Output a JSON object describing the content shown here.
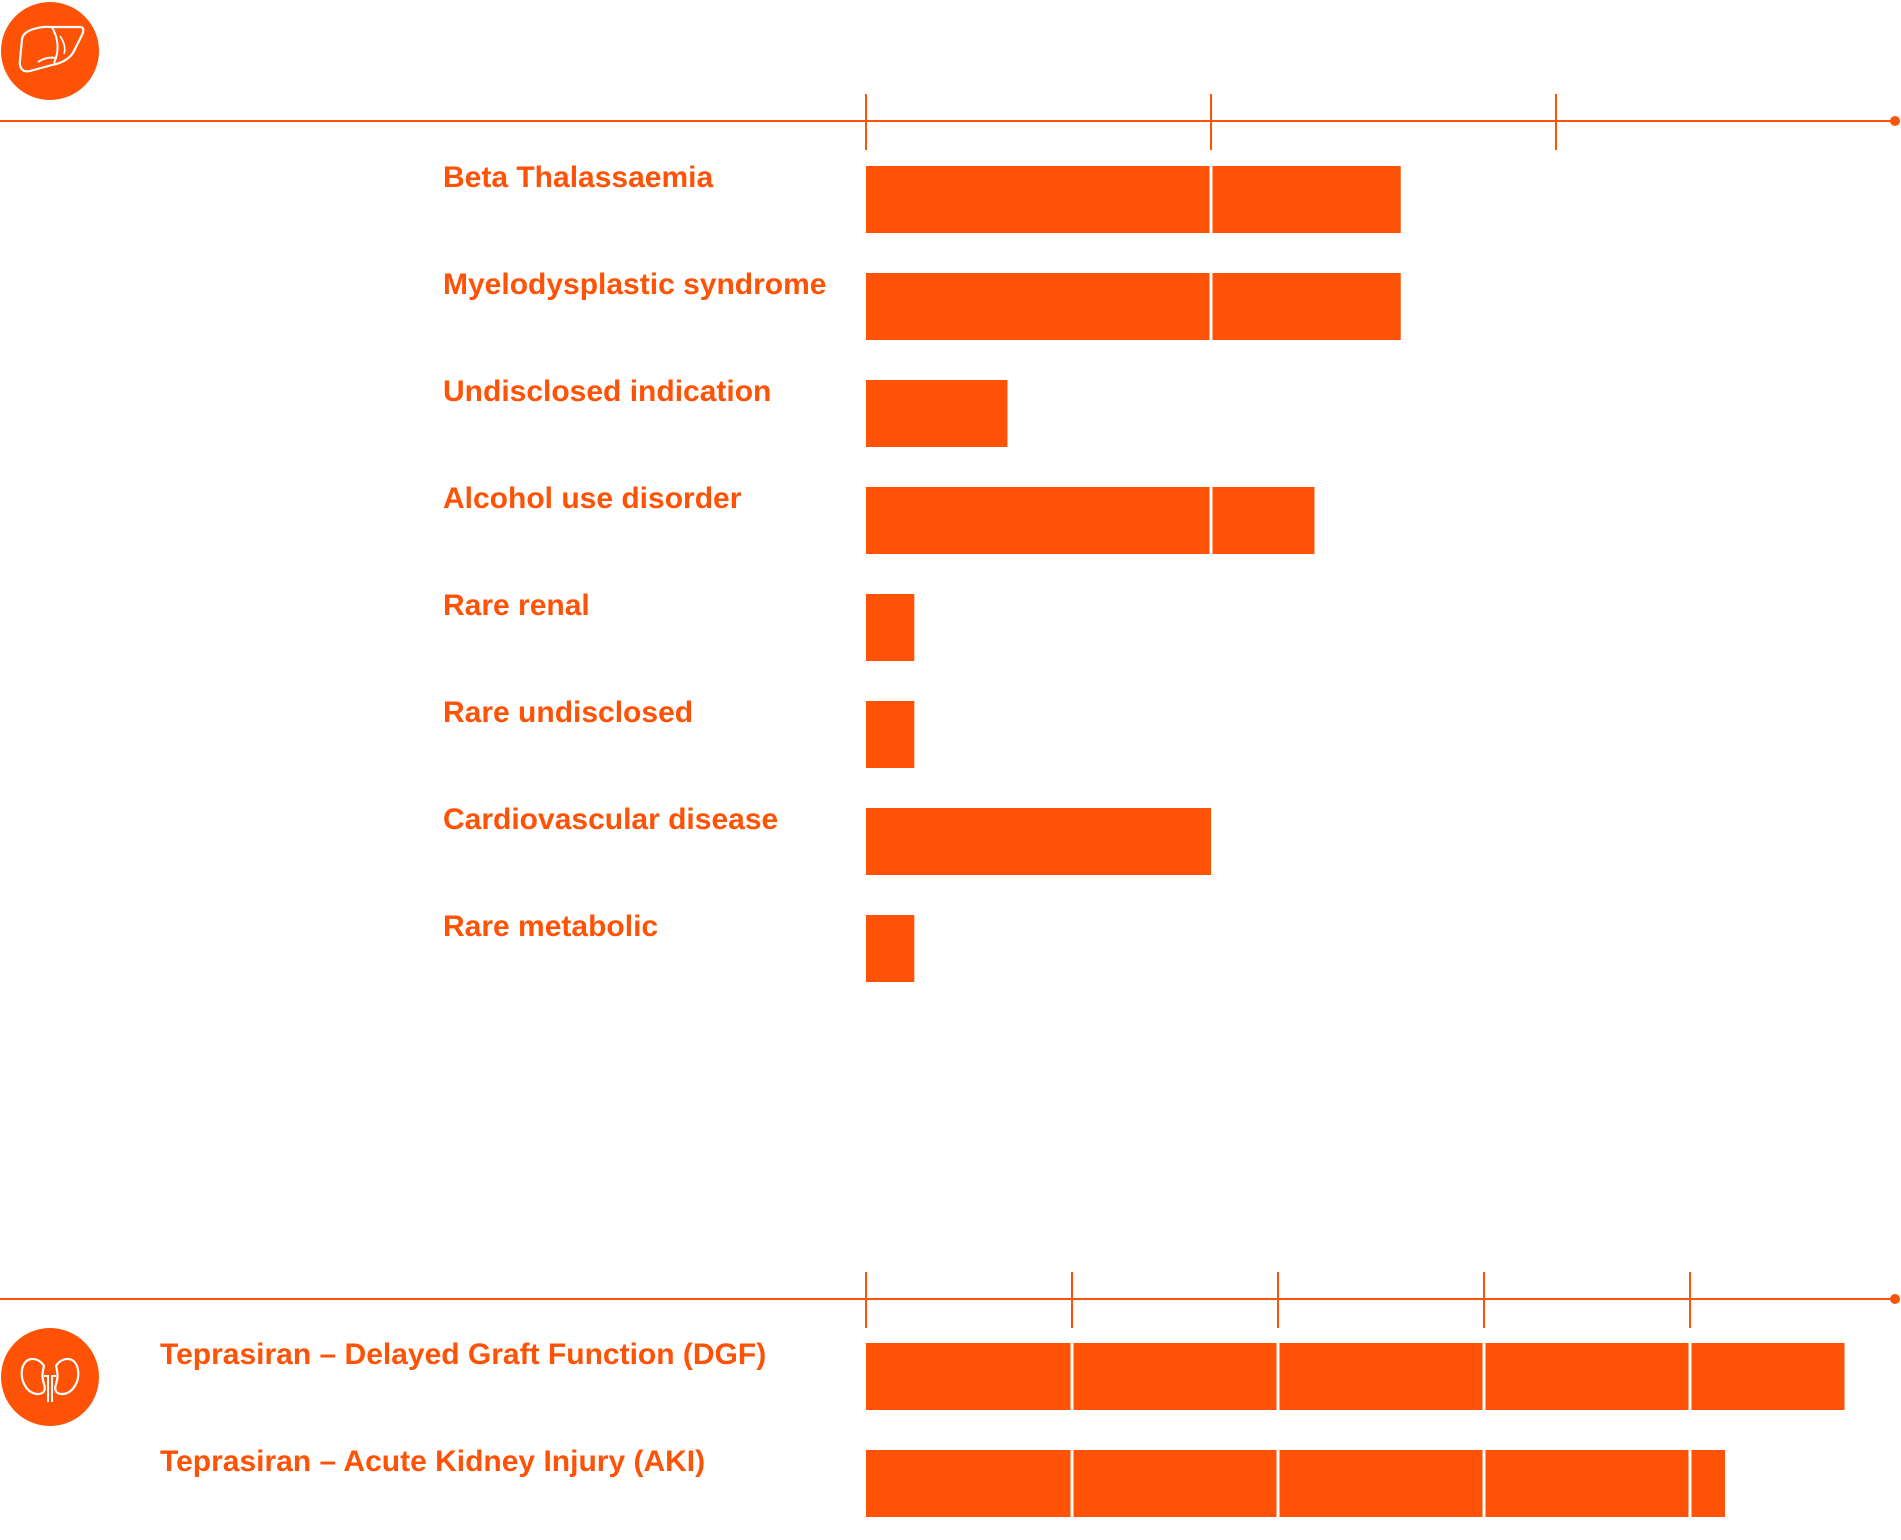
{
  "colors": {
    "accent": "#fe5206",
    "background": "#ffffff"
  },
  "chart_data": [
    {
      "type": "bar",
      "orientation": "horizontal",
      "stacked_segments": true,
      "icon": "liver-icon",
      "categories": [
        "Beta Thalassaemia",
        "Myelodysplastic syndrome",
        "Undisclosed indication",
        "Alcohol use disorder",
        "Rare renal",
        "Rare undisclosed",
        "Cardiovascular disease",
        "Rare metabolic"
      ],
      "values": [
        1.55,
        1.55,
        0.41,
        1.3,
        0.14,
        0.14,
        1.0,
        0.14
      ],
      "xlim": [
        0,
        3
      ],
      "tick_values": [
        0,
        1,
        2
      ],
      "title": "",
      "xlabel": "",
      "ylabel": "",
      "grid": false,
      "legend": "none"
    },
    {
      "type": "bar",
      "orientation": "horizontal",
      "stacked_segments": true,
      "icon": "kidney-icon",
      "categories": [
        "Teprasiran – Delayed Graft Function (DGF)",
        "Teprasiran – Acute Kidney Injury (AKI)"
      ],
      "values": [
        4.75,
        4.17
      ],
      "xlim": [
        0,
        5
      ],
      "tick_values": [
        0,
        1,
        2,
        3,
        4
      ],
      "title": "",
      "xlabel": "",
      "ylabel": "",
      "grid": false,
      "legend": "none"
    }
  ]
}
